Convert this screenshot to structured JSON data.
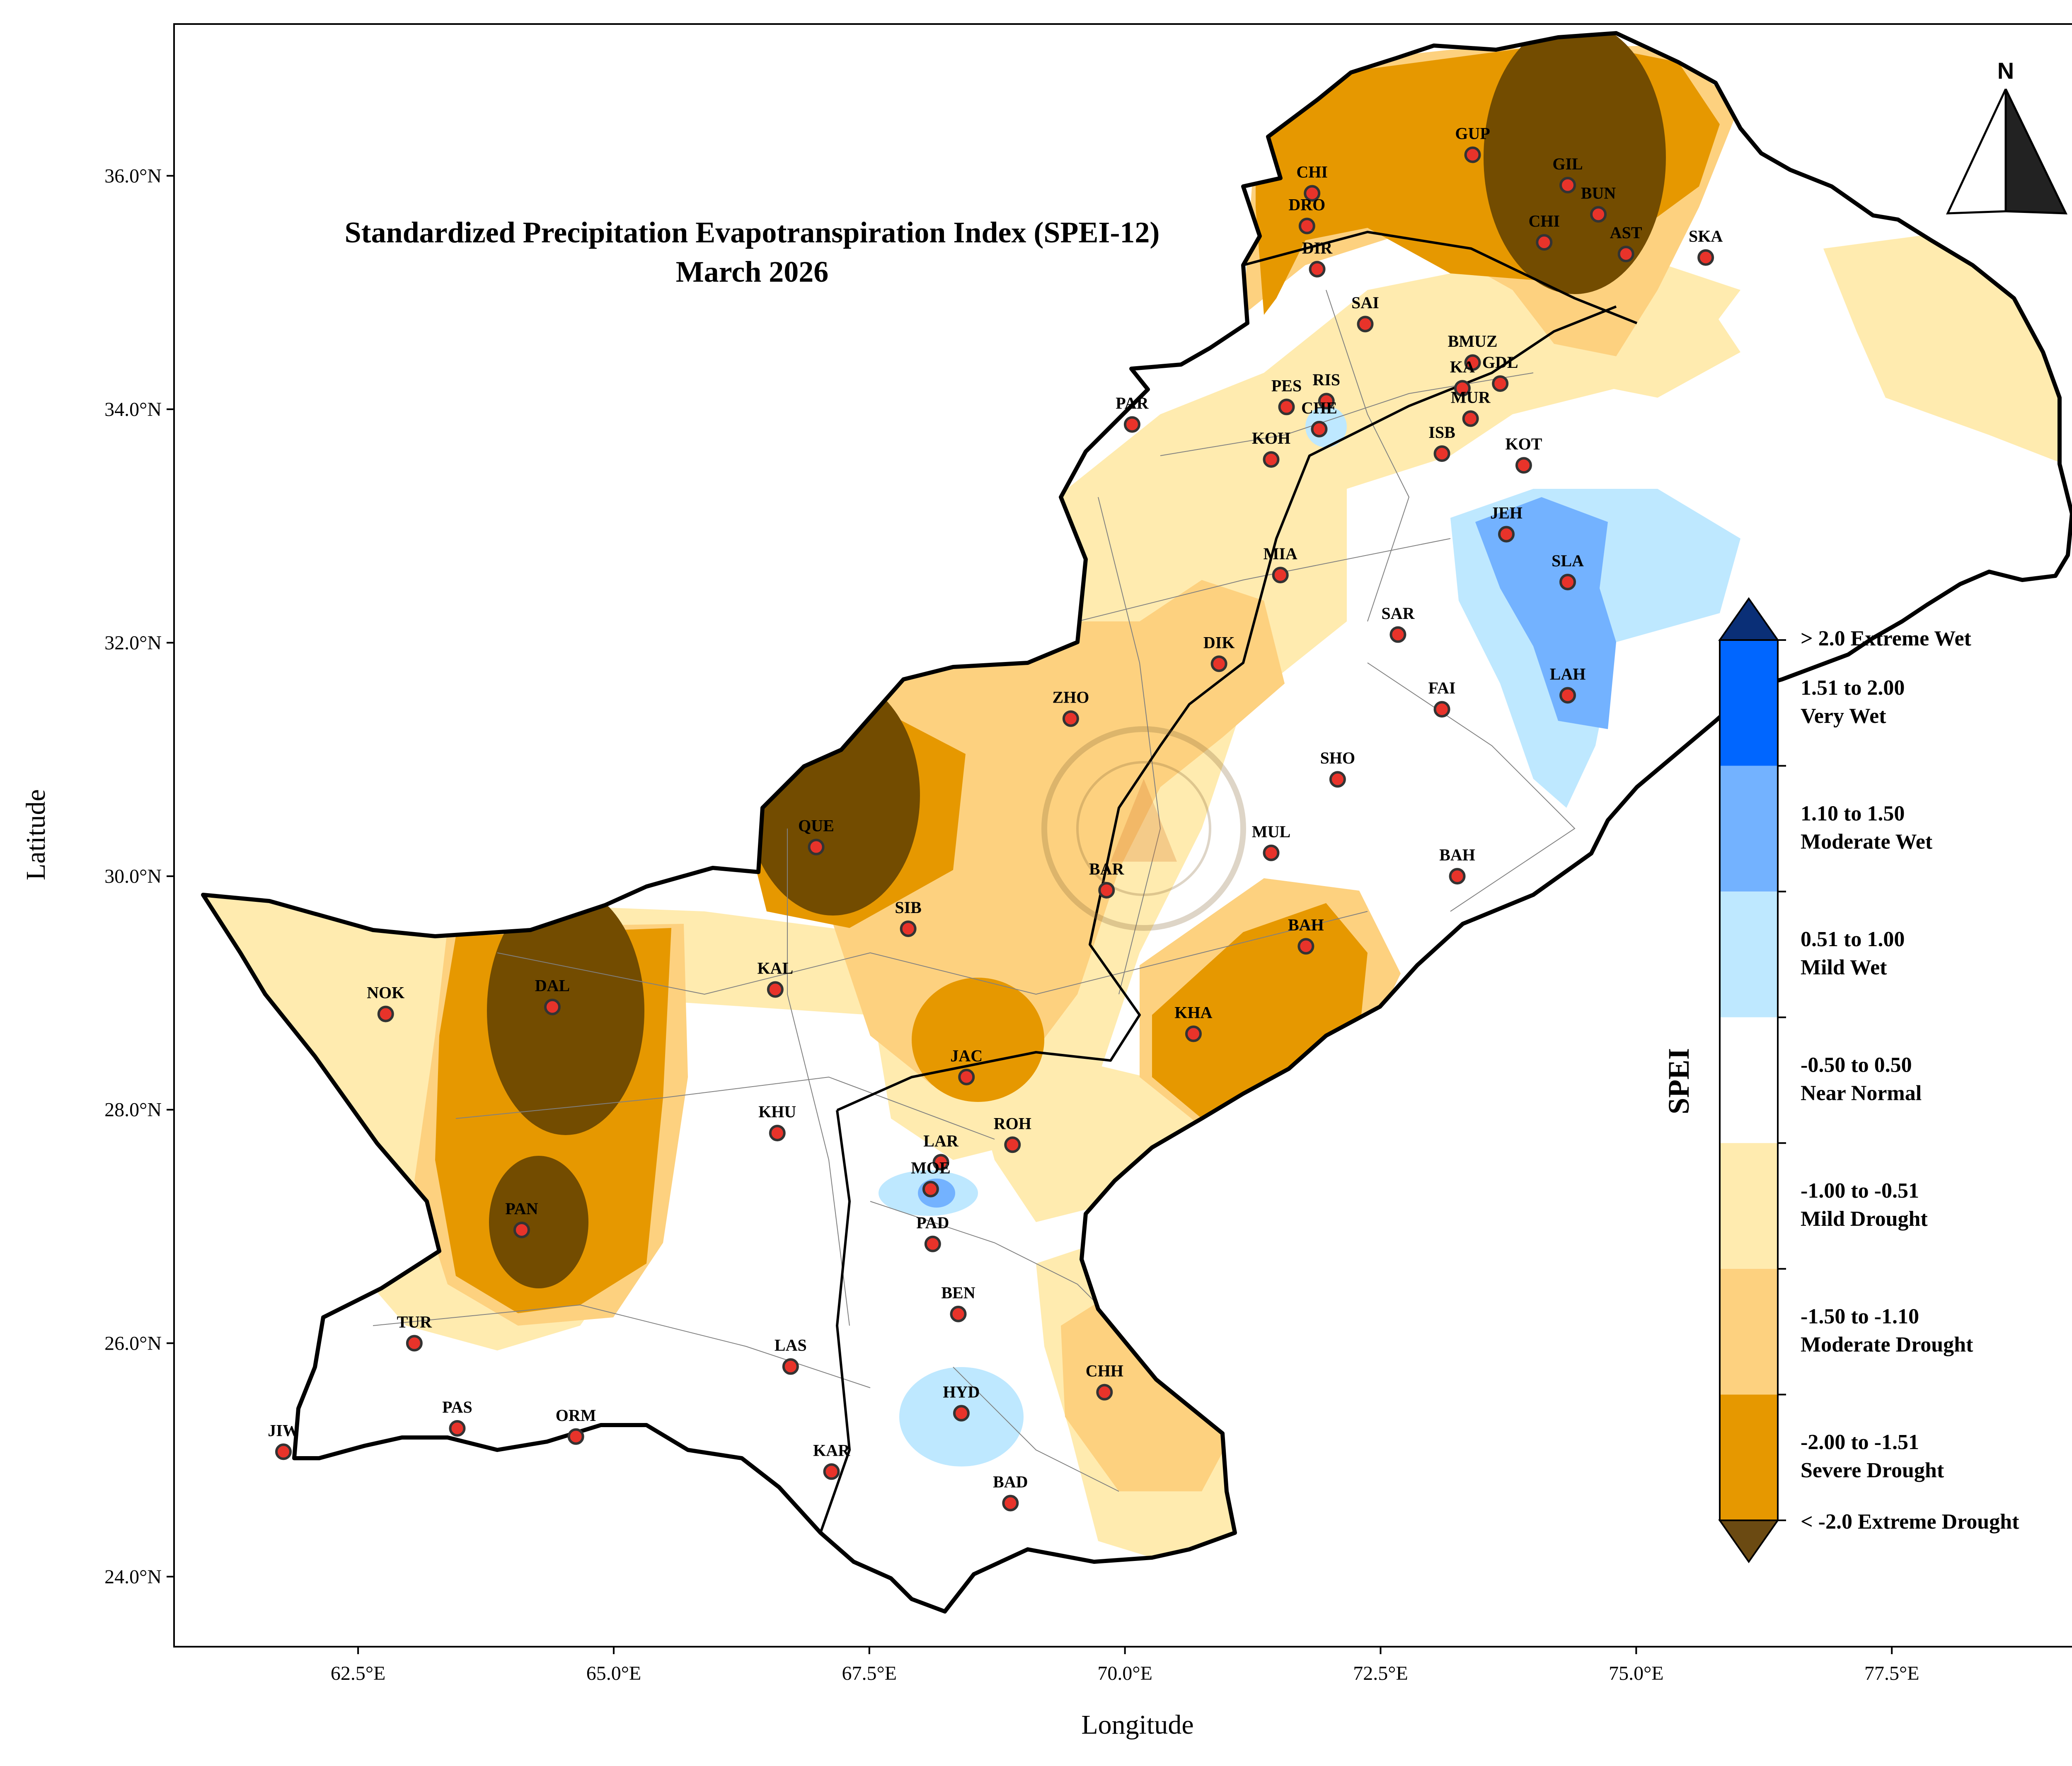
{
  "title": "Standardized Precipitation Evapotranspiration Index (SPEI-12)",
  "subtitle": "March 2026",
  "xlabel": "Longitude",
  "ylabel": "Latitude",
  "north_label": "N",
  "x_ticks": [
    {
      "value": 62.5,
      "label": "62.5°E"
    },
    {
      "value": 65.0,
      "label": "65.0°E"
    },
    {
      "value": 67.5,
      "label": "67.5°E"
    },
    {
      "value": 70.0,
      "label": "70.0°E"
    },
    {
      "value": 72.5,
      "label": "72.5°E"
    },
    {
      "value": 75.0,
      "label": "75.0°E"
    },
    {
      "value": 77.5,
      "label": "77.5°E"
    }
  ],
  "y_ticks": [
    {
      "value": 24.0,
      "label": "24.0°N"
    },
    {
      "value": 26.0,
      "label": "26.0°N"
    },
    {
      "value": 28.0,
      "label": "28.0°N"
    },
    {
      "value": 30.0,
      "label": "30.0°N"
    },
    {
      "value": 32.0,
      "label": "32.0°N"
    },
    {
      "value": 34.0,
      "label": "34.0°N"
    },
    {
      "value": 36.0,
      "label": "36.0°N"
    }
  ],
  "extent": {
    "lon": [
      60.7,
      79.4
    ],
    "lat": [
      23.4,
      37.3
    ]
  },
  "colorbar": {
    "label": "SPEI",
    "top_arrow_color": "#0a2f77",
    "bottom_arrow_color": "#6b4a12",
    "top_label": "> 2.0 Extreme Wet",
    "bottom_label": "< -2.0 Extreme Drought",
    "classes": [
      {
        "line1": "1.51 to 2.00",
        "line2": "Very Wet",
        "color": "#0066ff"
      },
      {
        "line1": "1.10 to 1.50",
        "line2": "Moderate Wet",
        "color": "#73b2ff"
      },
      {
        "line1": "0.51 to 1.00",
        "line2": "Mild Wet",
        "color": "#bee8ff"
      },
      {
        "line1": "-0.50 to 0.50",
        "line2": "Near Normal",
        "color": "#ffffff"
      },
      {
        "line1": "-1.00 to -0.51",
        "line2": "Mild Drought",
        "color": "#ffebaf"
      },
      {
        "line1": "-1.50 to -1.10",
        "line2": "Moderate Drought",
        "color": "#fdd17f"
      },
      {
        "line1": "-2.00 to -1.51",
        "line2": "Severe Drought",
        "color": "#e69800"
      }
    ]
  },
  "class_colors": {
    "extreme_drought": "#734c00",
    "severe_drought": "#e69800",
    "moderate_drought": "#fdd17f",
    "mild_drought": "#ffebaf",
    "mild_wet": "#bee8ff",
    "moderate_wet": "#73b2ff",
    "very_wet": "#0066ff",
    "station_fill": "#e8332a"
  },
  "stations": [
    {
      "code": "GUP",
      "lon": 73.4,
      "lat": 36.18
    },
    {
      "code": "CHI",
      "lon": 71.83,
      "lat": 35.85
    },
    {
      "code": "GIL",
      "lon": 74.33,
      "lat": 35.92
    },
    {
      "code": "BUN",
      "lon": 74.63,
      "lat": 35.67
    },
    {
      "code": "DRO",
      "lon": 71.78,
      "lat": 35.57
    },
    {
      "code": "CHI",
      "lon": 74.1,
      "lat": 35.43
    },
    {
      "code": "AST",
      "lon": 74.9,
      "lat": 35.33
    },
    {
      "code": "SKA",
      "lon": 75.68,
      "lat": 35.3
    },
    {
      "code": "DIR",
      "lon": 71.88,
      "lat": 35.2
    },
    {
      "code": "SAI",
      "lon": 72.35,
      "lat": 34.73
    },
    {
      "code": "BMUZ",
      "lon": 73.4,
      "lat": 34.4
    },
    {
      "code": "KA",
      "lon": 73.3,
      "lat": 34.18
    },
    {
      "code": "GDL",
      "lon": 73.67,
      "lat": 34.22
    },
    {
      "code": "PES",
      "lon": 71.58,
      "lat": 34.02
    },
    {
      "code": "RIS",
      "lon": 71.97,
      "lat": 34.07
    },
    {
      "code": "CHE",
      "lon": 71.9,
      "lat": 33.83
    },
    {
      "code": "MUR",
      "lon": 73.38,
      "lat": 33.92
    },
    {
      "code": "PAR",
      "lon": 70.07,
      "lat": 33.87
    },
    {
      "code": "ISB",
      "lon": 73.1,
      "lat": 33.62
    },
    {
      "code": "KOH",
      "lon": 71.43,
      "lat": 33.57
    },
    {
      "code": "KOT",
      "lon": 73.9,
      "lat": 33.52
    },
    {
      "code": "JEH",
      "lon": 73.73,
      "lat": 32.93
    },
    {
      "code": "MIA",
      "lon": 71.52,
      "lat": 32.58
    },
    {
      "code": "SLA",
      "lon": 74.33,
      "lat": 32.52
    },
    {
      "code": "SAR",
      "lon": 72.67,
      "lat": 32.07
    },
    {
      "code": "DIK",
      "lon": 70.92,
      "lat": 31.82
    },
    {
      "code": "LAH",
      "lon": 74.33,
      "lat": 31.55
    },
    {
      "code": "FAI",
      "lon": 73.1,
      "lat": 31.43
    },
    {
      "code": "ZHO",
      "lon": 69.47,
      "lat": 31.35
    },
    {
      "code": "SHO",
      "lon": 72.08,
      "lat": 30.83
    },
    {
      "code": "QUE",
      "lon": 66.98,
      "lat": 30.25
    },
    {
      "code": "MUL",
      "lon": 71.43,
      "lat": 30.2
    },
    {
      "code": "BAH",
      "lon": 73.25,
      "lat": 30.0
    },
    {
      "code": "BAR",
      "lon": 69.82,
      "lat": 29.88
    },
    {
      "code": "SIB",
      "lon": 67.88,
      "lat": 29.55
    },
    {
      "code": "BAH",
      "lon": 71.77,
      "lat": 29.4
    },
    {
      "code": "KAL",
      "lon": 66.58,
      "lat": 29.03
    },
    {
      "code": "NOK",
      "lon": 62.77,
      "lat": 28.82
    },
    {
      "code": "DAL",
      "lon": 64.4,
      "lat": 28.88
    },
    {
      "code": "KHA",
      "lon": 70.67,
      "lat": 28.65
    },
    {
      "code": "JAC",
      "lon": 68.45,
      "lat": 28.28
    },
    {
      "code": "KHU",
      "lon": 66.6,
      "lat": 27.8
    },
    {
      "code": "ROH",
      "lon": 68.9,
      "lat": 27.7
    },
    {
      "code": "LAR",
      "lon": 68.2,
      "lat": 27.55
    },
    {
      "code": "MOE",
      "lon": 68.1,
      "lat": 27.32
    },
    {
      "code": "PAN",
      "lon": 64.1,
      "lat": 26.97
    },
    {
      "code": "PAD",
      "lon": 68.12,
      "lat": 26.85
    },
    {
      "code": "BEN",
      "lon": 68.37,
      "lat": 26.25
    },
    {
      "code": "TUR",
      "lon": 63.05,
      "lat": 26.0
    },
    {
      "code": "LAS",
      "lon": 66.73,
      "lat": 25.8
    },
    {
      "code": "CHH",
      "lon": 69.8,
      "lat": 25.58
    },
    {
      "code": "HYD",
      "lon": 68.4,
      "lat": 25.4
    },
    {
      "code": "PAS",
      "lon": 63.47,
      "lat": 25.27
    },
    {
      "code": "ORM",
      "lon": 64.63,
      "lat": 25.2
    },
    {
      "code": "JIW",
      "lon": 61.77,
      "lat": 25.07
    },
    {
      "code": "KAR",
      "lon": 67.13,
      "lat": 24.9
    },
    {
      "code": "BAD",
      "lon": 68.88,
      "lat": 24.63
    }
  ]
}
